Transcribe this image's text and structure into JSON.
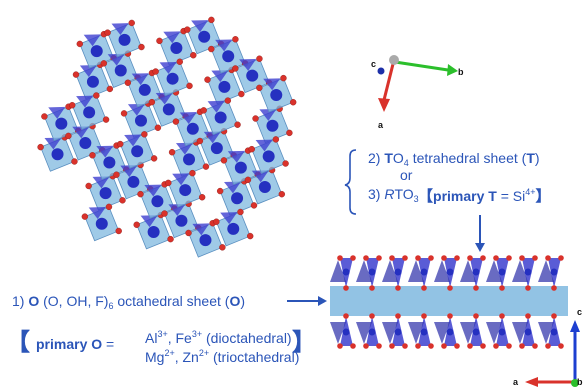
{
  "top_axes": {
    "a": "a",
    "b": "b",
    "c": "c"
  },
  "side_axes": {
    "a": "a",
    "b": "b",
    "c": "c"
  },
  "tetra_block": {
    "line2_prefix": "2) ",
    "line2_bold": "T",
    "line2_formula": "O",
    "line2_sub": "4",
    "line2_rest": "  tetrahedral sheet (",
    "line2_bold2": "T",
    "line2_end": ")",
    "or": "or",
    "line3_prefix": "3) ",
    "line3_italic": "R",
    "line3_formula": "TO",
    "line3_sub": "3",
    "primary_label": "primary T",
    "primary_eq": " = Si",
    "primary_sup": "4+"
  },
  "octa_block": {
    "line1_prefix": "1) ",
    "line1_bold": "O",
    "line1_mid": " (O, OH, F)",
    "line1_sub": "6",
    "line1_rest": " octahedral sheet (",
    "line1_bold2": "O",
    "line1_end": ")",
    "primary_label": "primary O",
    "primary_eq": " =",
    "di_prefix": "Al",
    "di_sup1": "3+",
    "di_mid": ", Fe",
    "di_sup2": "3+",
    "di_rest": " (dioctahedral)",
    "tri_prefix": "Mg",
    "tri_sup1": "2+",
    "tri_mid": ", Zn",
    "tri_sup2": "2+",
    "tri_rest": " (trioctahedral)"
  },
  "colors": {
    "text": "#2b55b8",
    "octahedra": "#7fb8df",
    "tetrahedra": "#3d3fcf",
    "oxygen": "#d9322b",
    "cation": "#2530c0"
  }
}
